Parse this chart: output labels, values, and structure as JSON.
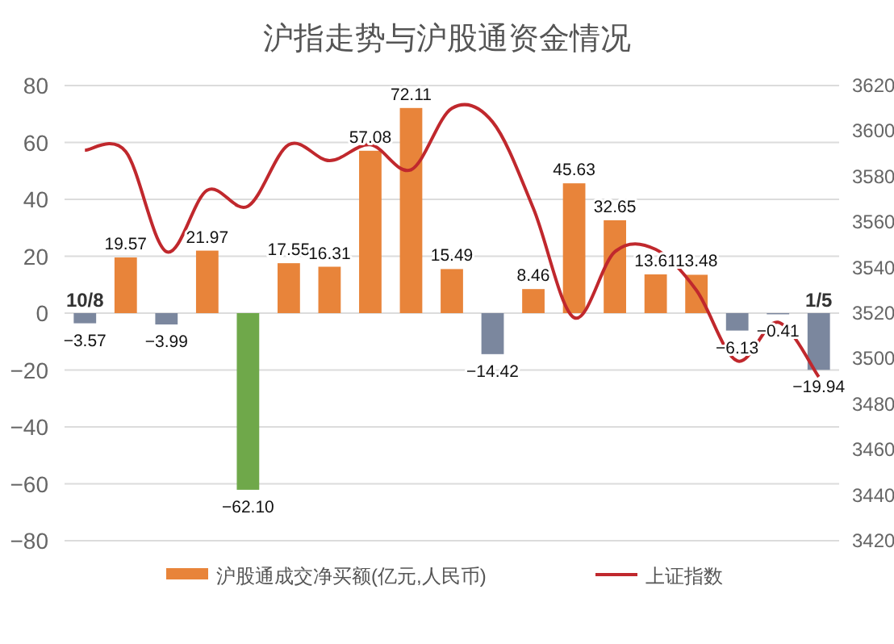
{
  "chart_data": {
    "type": "bar",
    "title": "沪指走势与沪股通资金情况",
    "categories": [
      "10/8",
      null,
      null,
      null,
      null,
      null,
      null,
      null,
      null,
      null,
      null,
      null,
      null,
      null,
      null,
      null,
      null,
      null,
      "1/5"
    ],
    "series": [
      {
        "name": "沪股通成交净买额(亿元,人民币)",
        "color": "#e8843a",
        "colors": [
          "#7b879e",
          "#e8843a",
          "#7b879e",
          "#e8843a",
          "#6fa84a",
          "#e8843a",
          "#e8843a",
          "#e8843a",
          "#e8843a",
          "#e8843a",
          "#7b879e",
          "#e8843a",
          "#e8843a",
          "#e8843a",
          "#e8843a",
          "#e8843a",
          "#7b879e",
          "#7b879e",
          "#7b879e"
        ],
        "values": [
          -3.57,
          19.57,
          -3.99,
          21.97,
          -62.1,
          17.55,
          16.31,
          57.08,
          72.11,
          15.49,
          -14.42,
          8.46,
          45.63,
          32.65,
          13.61,
          13.48,
          -6.13,
          -0.41,
          -19.94
        ],
        "value_labels": [
          "−3.57",
          "19.57",
          "−3.99",
          "21.97",
          "−62.10",
          "17.55",
          "16.31",
          "57.08",
          "72.11",
          "15.49",
          "−14.42",
          "8.46",
          "45.63",
          "32.65",
          "13.61",
          "13.48",
          "−6.13",
          "−0.41",
          "−19.94"
        ]
      },
      {
        "name": "上证指数",
        "type": "line",
        "axis": "y2",
        "color": "#c0282d",
        "values": [
          3591.6,
          3591,
          3547,
          3574,
          3567,
          3594,
          3587,
          3594,
          3583,
          3610,
          3604,
          3566,
          3518,
          3547,
          3548,
          3530,
          3499,
          3516,
          3492
        ]
      }
    ],
    "ylim": [
      -80,
      80
    ],
    "yticks": [
      {
        "value": -80,
        "label": "−80"
      },
      {
        "value": -60,
        "label": "−60"
      },
      {
        "value": -40,
        "label": "−40"
      },
      {
        "value": -20,
        "label": "−20"
      },
      0,
      20,
      40,
      60,
      80
    ],
    "y2lim": [
      3420,
      3620
    ],
    "y2ticks": [
      3420,
      3440,
      3460,
      3480,
      3500,
      3520,
      3540,
      3560,
      3580,
      3600,
      3620
    ],
    "grid": "y",
    "legend": "bottom",
    "marker": "none",
    "line_style": "solid"
  }
}
